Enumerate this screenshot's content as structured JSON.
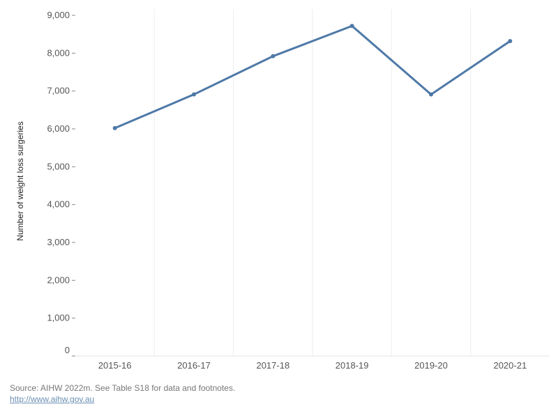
{
  "chart_data": {
    "type": "line",
    "categories": [
      "2015-16",
      "2016-17",
      "2017-18",
      "2018-19",
      "2019-20",
      "2020-21"
    ],
    "series": [
      {
        "values": [
          6020,
          6910,
          7920,
          8720,
          6910,
          8320
        ]
      }
    ],
    "ylabel": "Number of weight loss surgeries",
    "xlabel": "",
    "ylim": [
      0,
      9000
    ],
    "yticks": [
      0,
      1000,
      2000,
      3000,
      4000,
      5000,
      6000,
      7000,
      8000,
      9000
    ],
    "ytick_labels": [
      "0",
      "1,000",
      "2,000",
      "3,000",
      "4,000",
      "5,000",
      "6,000",
      "7,000",
      "8,000",
      "9,000"
    ],
    "grid": "vertical category separators",
    "line_color": "#4e79a7"
  },
  "footer": {
    "source_text": "Source: AIHW 2022m. See Table S18 for data and footnotes.",
    "link_text": "http://www.aihw.gov.au"
  }
}
